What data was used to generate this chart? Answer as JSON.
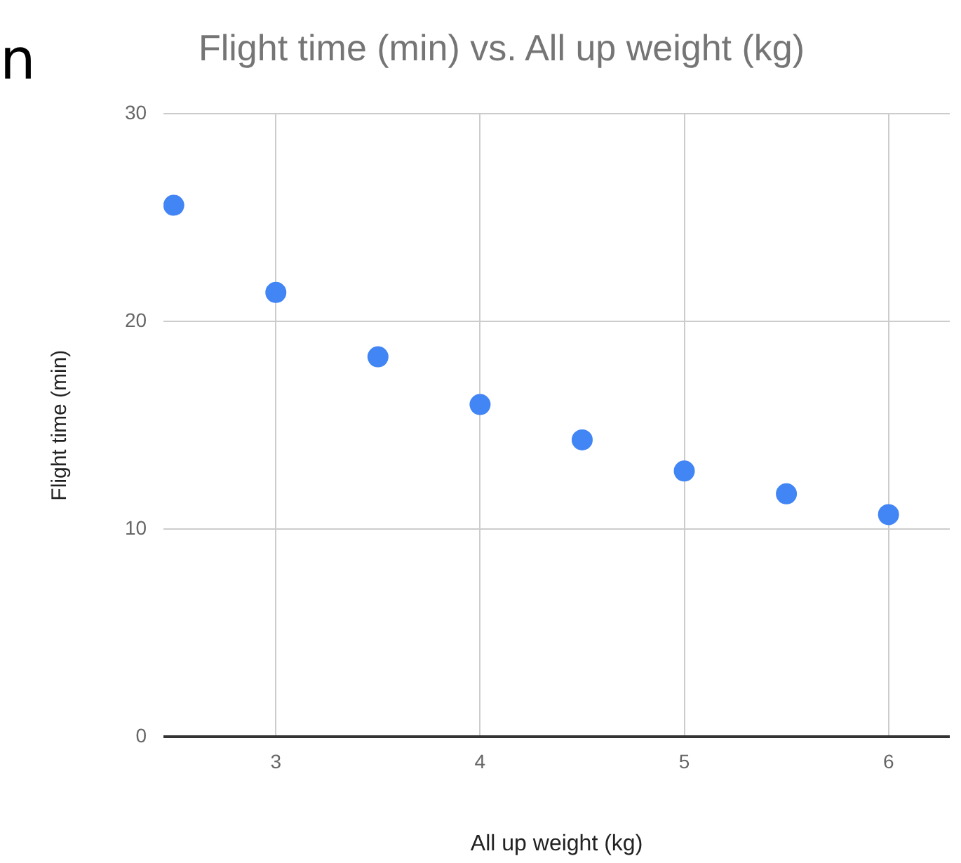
{
  "chart_data": {
    "type": "scatter",
    "title": "Flight time (min) vs. All up weight (kg)",
    "xlabel": "All up weight (kg)",
    "ylabel": "Flight time (min)",
    "annotations": [
      "n"
    ],
    "x": [
      2.5,
      3,
      3.5,
      4,
      4.5,
      5,
      5.5,
      6
    ],
    "series": [
      {
        "color": "#4285f4",
        "values": [
          25.6,
          21.4,
          18.3,
          16.0,
          14.3,
          12.8,
          11.7,
          10.7
        ]
      }
    ],
    "xlim": [
      2.45,
      6.3
    ],
    "xticks": [
      3,
      4,
      5,
      6
    ],
    "ylim": [
      0,
      30
    ],
    "yticks": [
      0,
      10,
      20,
      30
    ],
    "grid": true,
    "legend": false,
    "marker": "circle"
  }
}
